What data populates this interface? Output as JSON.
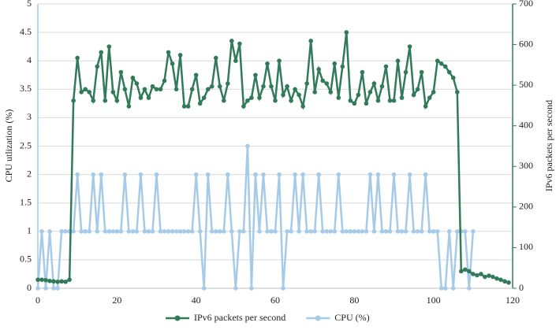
{
  "chart_data": {
    "type": "line",
    "y_label": "CPU utlization (%)",
    "y2_label": "IPv6 packets per second",
    "x": [
      0,
      1,
      2,
      3,
      4,
      5,
      6,
      7,
      8,
      9,
      10,
      11,
      12,
      13,
      14,
      15,
      16,
      17,
      18,
      19,
      20,
      21,
      22,
      23,
      24,
      25,
      26,
      27,
      28,
      29,
      30,
      31,
      32,
      33,
      34,
      35,
      36,
      37,
      38,
      39,
      40,
      41,
      42,
      43,
      44,
      45,
      46,
      47,
      48,
      49,
      50,
      51,
      52,
      53,
      54,
      55,
      56,
      57,
      58,
      59,
      60,
      61,
      62,
      63,
      64,
      65,
      66,
      67,
      68,
      69,
      70,
      71,
      72,
      73,
      74,
      75,
      76,
      77,
      78,
      79,
      80,
      81,
      82,
      83,
      84,
      85,
      86,
      87,
      88,
      89,
      90,
      91,
      92,
      93,
      94,
      95,
      96,
      97,
      98,
      99,
      100,
      101,
      102,
      103,
      104,
      105,
      106,
      107,
      108,
      109,
      110,
      111,
      112,
      113,
      114,
      115,
      116,
      117,
      118,
      119
    ],
    "series": [
      {
        "name": "IPv6 packets per second",
        "color": "#317a5a",
        "axis": "y2",
        "values": [
          21,
          21,
          20,
          18,
          17,
          16,
          17,
          16,
          21,
          462,
          567,
          483,
          490,
          483,
          462,
          546,
          581,
          462,
          595,
          483,
          462,
          532,
          490,
          448,
          518,
          504,
          469,
          490,
          469,
          497,
          490,
          490,
          511,
          581,
          553,
          490,
          574,
          448,
          448,
          490,
          525,
          455,
          469,
          490,
          497,
          567,
          497,
          462,
          504,
          609,
          560,
          602,
          448,
          462,
          469,
          525,
          469,
          497,
          553,
          497,
          462,
          560,
          476,
          497,
          462,
          490,
          476,
          448,
          504,
          609,
          483,
          539,
          511,
          504,
          483,
          553,
          469,
          546,
          630,
          462,
          455,
          476,
          532,
          455,
          483,
          504,
          462,
          497,
          546,
          462,
          462,
          560,
          469,
          532,
          595,
          476,
          490,
          532,
          448,
          469,
          483,
          560,
          553,
          546,
          532,
          518,
          483,
          42,
          46,
          42,
          35,
          32,
          35,
          28,
          31,
          28,
          24,
          21,
          17,
          14
        ]
      },
      {
        "name": "CPU (%)",
        "color": "#a6cbe8",
        "axis": "y",
        "values": [
          0,
          1,
          0,
          1,
          0,
          0,
          1,
          1,
          1,
          1,
          2,
          1,
          1,
          1,
          2,
          1,
          2,
          1,
          1,
          1,
          1,
          1,
          2,
          1,
          1,
          1,
          2,
          1,
          1,
          1,
          2,
          1,
          1,
          1,
          1,
          1,
          1,
          1,
          1,
          1,
          2,
          1,
          0,
          2,
          1,
          1,
          1,
          1,
          2,
          1,
          0,
          1,
          1,
          2.5,
          0,
          2,
          1,
          2,
          1,
          1,
          1,
          2,
          0,
          1,
          1,
          2,
          1,
          2,
          1,
          1,
          1,
          2,
          1,
          1,
          1,
          1,
          2,
          1,
          1,
          1,
          1,
          1,
          1,
          1,
          2,
          1,
          2,
          1,
          1,
          1,
          2,
          1,
          1,
          1,
          2,
          1,
          1,
          1,
          2,
          1,
          1,
          1,
          0,
          0,
          1,
          0,
          1,
          1,
          1,
          0,
          1,
          null,
          null,
          null,
          null,
          null,
          null,
          null,
          null,
          null
        ]
      }
    ],
    "xlim": [
      0,
      120
    ],
    "xticks": [
      0,
      20,
      40,
      60,
      80,
      100,
      120
    ],
    "ylim": [
      0,
      5
    ],
    "yticks": [
      0,
      0.5,
      1,
      1.5,
      2,
      2.5,
      3,
      3.5,
      4,
      4.5,
      5
    ],
    "y2lim": [
      0,
      700
    ],
    "y2ticks": [
      0,
      100,
      200,
      300,
      400,
      500,
      600,
      700
    ],
    "grid": true,
    "legend": "bottom"
  }
}
